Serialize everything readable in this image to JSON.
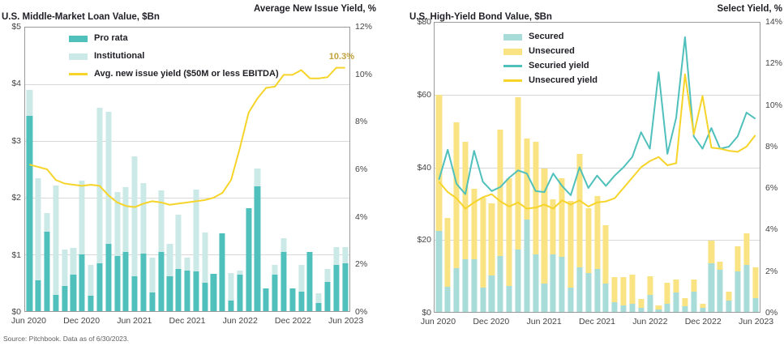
{
  "page": {
    "source_note": "Source: Pitchbook. Data as of 6/30/2023."
  },
  "colors": {
    "pro_rata": "#4FC0BB",
    "institutional": "#CBE9E6",
    "yield_line": "#F6D42A",
    "annotation_gold": "#C2A23C",
    "secured": "#A7DCD8",
    "unsecured": "#FAE382",
    "secured_yield": "#4FC0BB",
    "unsecured_yield": "#F6D42A",
    "frame": "#9A9A9A",
    "gridline": "#D8D8D8",
    "title_text": "#1E1E24",
    "axis_text": "#454545"
  },
  "chart_data": [
    {
      "type": "stacked_bar_line_dual_axis",
      "title": "U.S. Middle-Market Loan Value, $Bn",
      "right_axis_title": "Average New Issue Yield, %",
      "x_ticks": [
        "Jun 2020",
        "Dec 2020",
        "Jun 2021",
        "Dec 2021",
        "Jun 2022",
        "Dec 2022",
        "Jun 2023"
      ],
      "x_tick_interval": 6,
      "months": [
        "Jun 2020",
        "Jul 2020",
        "Aug 2020",
        "Sep 2020",
        "Oct 2020",
        "Nov 2020",
        "Dec 2020",
        "Jan 2021",
        "Feb 2021",
        "Mar 2021",
        "Apr 2021",
        "May 2021",
        "Jun 2021",
        "Jul 2021",
        "Aug 2021",
        "Sep 2021",
        "Oct 2021",
        "Nov 2021",
        "Dec 2021",
        "Jan 2022",
        "Feb 2022",
        "Mar 2022",
        "Apr 2022",
        "May 2022",
        "Jun 2022",
        "Jul 2022",
        "Aug 2022",
        "Sep 2022",
        "Oct 2022",
        "Nov 2022",
        "Dec 2022",
        "Jan 2023",
        "Feb 2023",
        "Mar 2023",
        "Apr 2023",
        "May 2023",
        "Jun 2023"
      ],
      "y_left": {
        "min": 0,
        "max": 5,
        "labels": [
          "$5",
          "$4",
          "$3",
          "$2",
          "$1",
          "$0"
        ],
        "gridlines_at": [
          4,
          3,
          2,
          1
        ]
      },
      "y_right": {
        "min": 0,
        "max": 12,
        "labels": [
          "12%",
          "10%",
          "8%",
          "6%",
          "4%",
          "2%",
          "0%"
        ]
      },
      "series": [
        {
          "name": "Pro rata",
          "type": "bar",
          "color_key": "pro_rata",
          "values": [
            3.45,
            0.55,
            1.4,
            0.28,
            0.44,
            0.65,
            1.0,
            0.27,
            0.84,
            1.18,
            0.97,
            1.04,
            0.62,
            1.02,
            0.33,
            1.05,
            0.62,
            0.75,
            0.72,
            0.7,
            0.5,
            0.66,
            1.37,
            0.19,
            0.65,
            1.82,
            2.2,
            0.4,
            0.64,
            1.04,
            0.4,
            0.34,
            1.04,
            0.15,
            0.51,
            0.81,
            0.85
          ]
        },
        {
          "name": "Institutional",
          "type": "bar",
          "color_key": "institutional",
          "values": [
            0.45,
            1.8,
            0.33,
            1.93,
            0.64,
            0.46,
            1.3,
            0.55,
            2.75,
            2.34,
            1.13,
            1.15,
            2.11,
            1.24,
            0.62,
            1.08,
            0.57,
            0.95,
            0.23,
            1.45,
            0.89,
            0.0,
            0.0,
            0.48,
            0.07,
            0.0,
            0.32,
            0.0,
            0.17,
            0.25,
            0.0,
            0.47,
            0.0,
            0.16,
            0.24,
            0.32,
            0.28
          ]
        },
        {
          "name": "Avg. new issue yield ($50M or less EBITDA)",
          "type": "line",
          "axis": "right",
          "color_key": "yield_line",
          "values": [
            6.2,
            6.1,
            6.0,
            5.55,
            5.4,
            5.35,
            5.3,
            5.35,
            5.3,
            4.9,
            4.6,
            4.45,
            4.4,
            4.55,
            4.65,
            4.6,
            4.5,
            4.55,
            4.6,
            4.65,
            4.7,
            4.8,
            5.0,
            5.55,
            6.9,
            8.4,
            9.0,
            9.45,
            9.5,
            10.0,
            10.0,
            10.2,
            9.85,
            9.85,
            9.9,
            10.3,
            10.3
          ]
        }
      ],
      "annotation": {
        "text": "10.3%"
      }
    },
    {
      "type": "stacked_bar_line_dual_axis",
      "title": "U.S. High-Yield Bond Value, $Bn",
      "right_axis_title": "Select Yield, %",
      "x_ticks": [
        "Jun 2020",
        "Dec 2020",
        "Jun 2021",
        "Dec 2021",
        "Jun 2022",
        "Dec 2022",
        "Jun 2023"
      ],
      "x_tick_interval": 6,
      "months": [
        "Jun 2020",
        "Jul 2020",
        "Aug 2020",
        "Sep 2020",
        "Oct 2020",
        "Nov 2020",
        "Dec 2020",
        "Jan 2021",
        "Feb 2021",
        "Mar 2021",
        "Apr 2021",
        "May 2021",
        "Jun 2021",
        "Jul 2021",
        "Aug 2021",
        "Sep 2021",
        "Oct 2021",
        "Nov 2021",
        "Dec 2021",
        "Jan 2022",
        "Feb 2022",
        "Mar 2022",
        "Apr 2022",
        "May 2022",
        "Jun 2022",
        "Jul 2022",
        "Aug 2022",
        "Sep 2022",
        "Oct 2022",
        "Nov 2022",
        "Dec 2022",
        "Jan 2023",
        "Feb 2023",
        "Mar 2023",
        "Apr 2023",
        "May 2023",
        "Jun 2023"
      ],
      "y_left": {
        "min": 0,
        "max": 80,
        "labels": [
          "$80",
          "$60",
          "$40",
          "$20",
          "$0"
        ],
        "gridlines_at": [
          60,
          40,
          20
        ]
      },
      "y_right": {
        "min": 0,
        "max": 14,
        "labels": [
          "14%",
          "12%",
          "10%",
          "8%",
          "6%",
          "4%",
          "2%",
          "0%"
        ]
      },
      "series": [
        {
          "name": "Secured",
          "type": "bar",
          "color_key": "secured",
          "values": [
            22.5,
            7.0,
            12.0,
            14.5,
            14.5,
            6.8,
            10.0,
            15.5,
            7.2,
            17.3,
            25.5,
            16.0,
            7.9,
            16.0,
            15.3,
            6.8,
            12.4,
            10.7,
            11.8,
            7.9,
            2.6,
            1.9,
            2.2,
            1.2,
            4.6,
            0.7,
            2.2,
            5.3,
            1.5,
            5.7,
            1.1,
            13.5,
            11.6,
            3.1,
            11.2,
            12.9,
            3.9
          ]
        },
        {
          "name": "Unsecured",
          "type": "bar",
          "color_key": "unsecured",
          "values": [
            37.5,
            19.0,
            40.5,
            32.5,
            19.5,
            24.7,
            20.0,
            34.9,
            29.8,
            42.2,
            22.5,
            31.0,
            31.7,
            15.1,
            21.7,
            24.0,
            31.2,
            18.0,
            20.2,
            16.0,
            7.0,
            7.8,
            8.2,
            2.5,
            5.3,
            1.1,
            5.9,
            3.7,
            2.4,
            3.3,
            1.1,
            6.2,
            2.2,
            2.6,
            7.0,
            8.8,
            8.4
          ]
        },
        {
          "name": "Securied yield",
          "type": "line",
          "axis": "right",
          "color_key": "secured_yield",
          "values": [
            6.4,
            7.85,
            6.2,
            5.7,
            7.8,
            6.3,
            5.85,
            6.05,
            6.5,
            6.85,
            6.7,
            5.85,
            5.8,
            6.7,
            6.1,
            5.65,
            7.0,
            6.0,
            6.6,
            6.1,
            6.6,
            7.0,
            7.5,
            8.7,
            7.9,
            11.6,
            7.65,
            9.4,
            13.3,
            8.5,
            7.9,
            8.9,
            7.9,
            8.0,
            8.5,
            9.65,
            9.35
          ]
        },
        {
          "name": "Unsecured yield",
          "type": "line",
          "axis": "right",
          "color_key": "unsecured_yield",
          "values": [
            6.3,
            5.8,
            5.5,
            5.0,
            5.3,
            5.55,
            5.7,
            5.35,
            5.1,
            5.3,
            5.0,
            5.05,
            5.2,
            5.0,
            5.4,
            5.2,
            5.4,
            5.1,
            5.3,
            5.35,
            5.5,
            6.0,
            6.5,
            7.0,
            7.3,
            7.5,
            7.1,
            7.2,
            11.5,
            8.6,
            10.45,
            7.95,
            7.9,
            7.8,
            7.75,
            8.0,
            8.55
          ]
        }
      ]
    }
  ]
}
